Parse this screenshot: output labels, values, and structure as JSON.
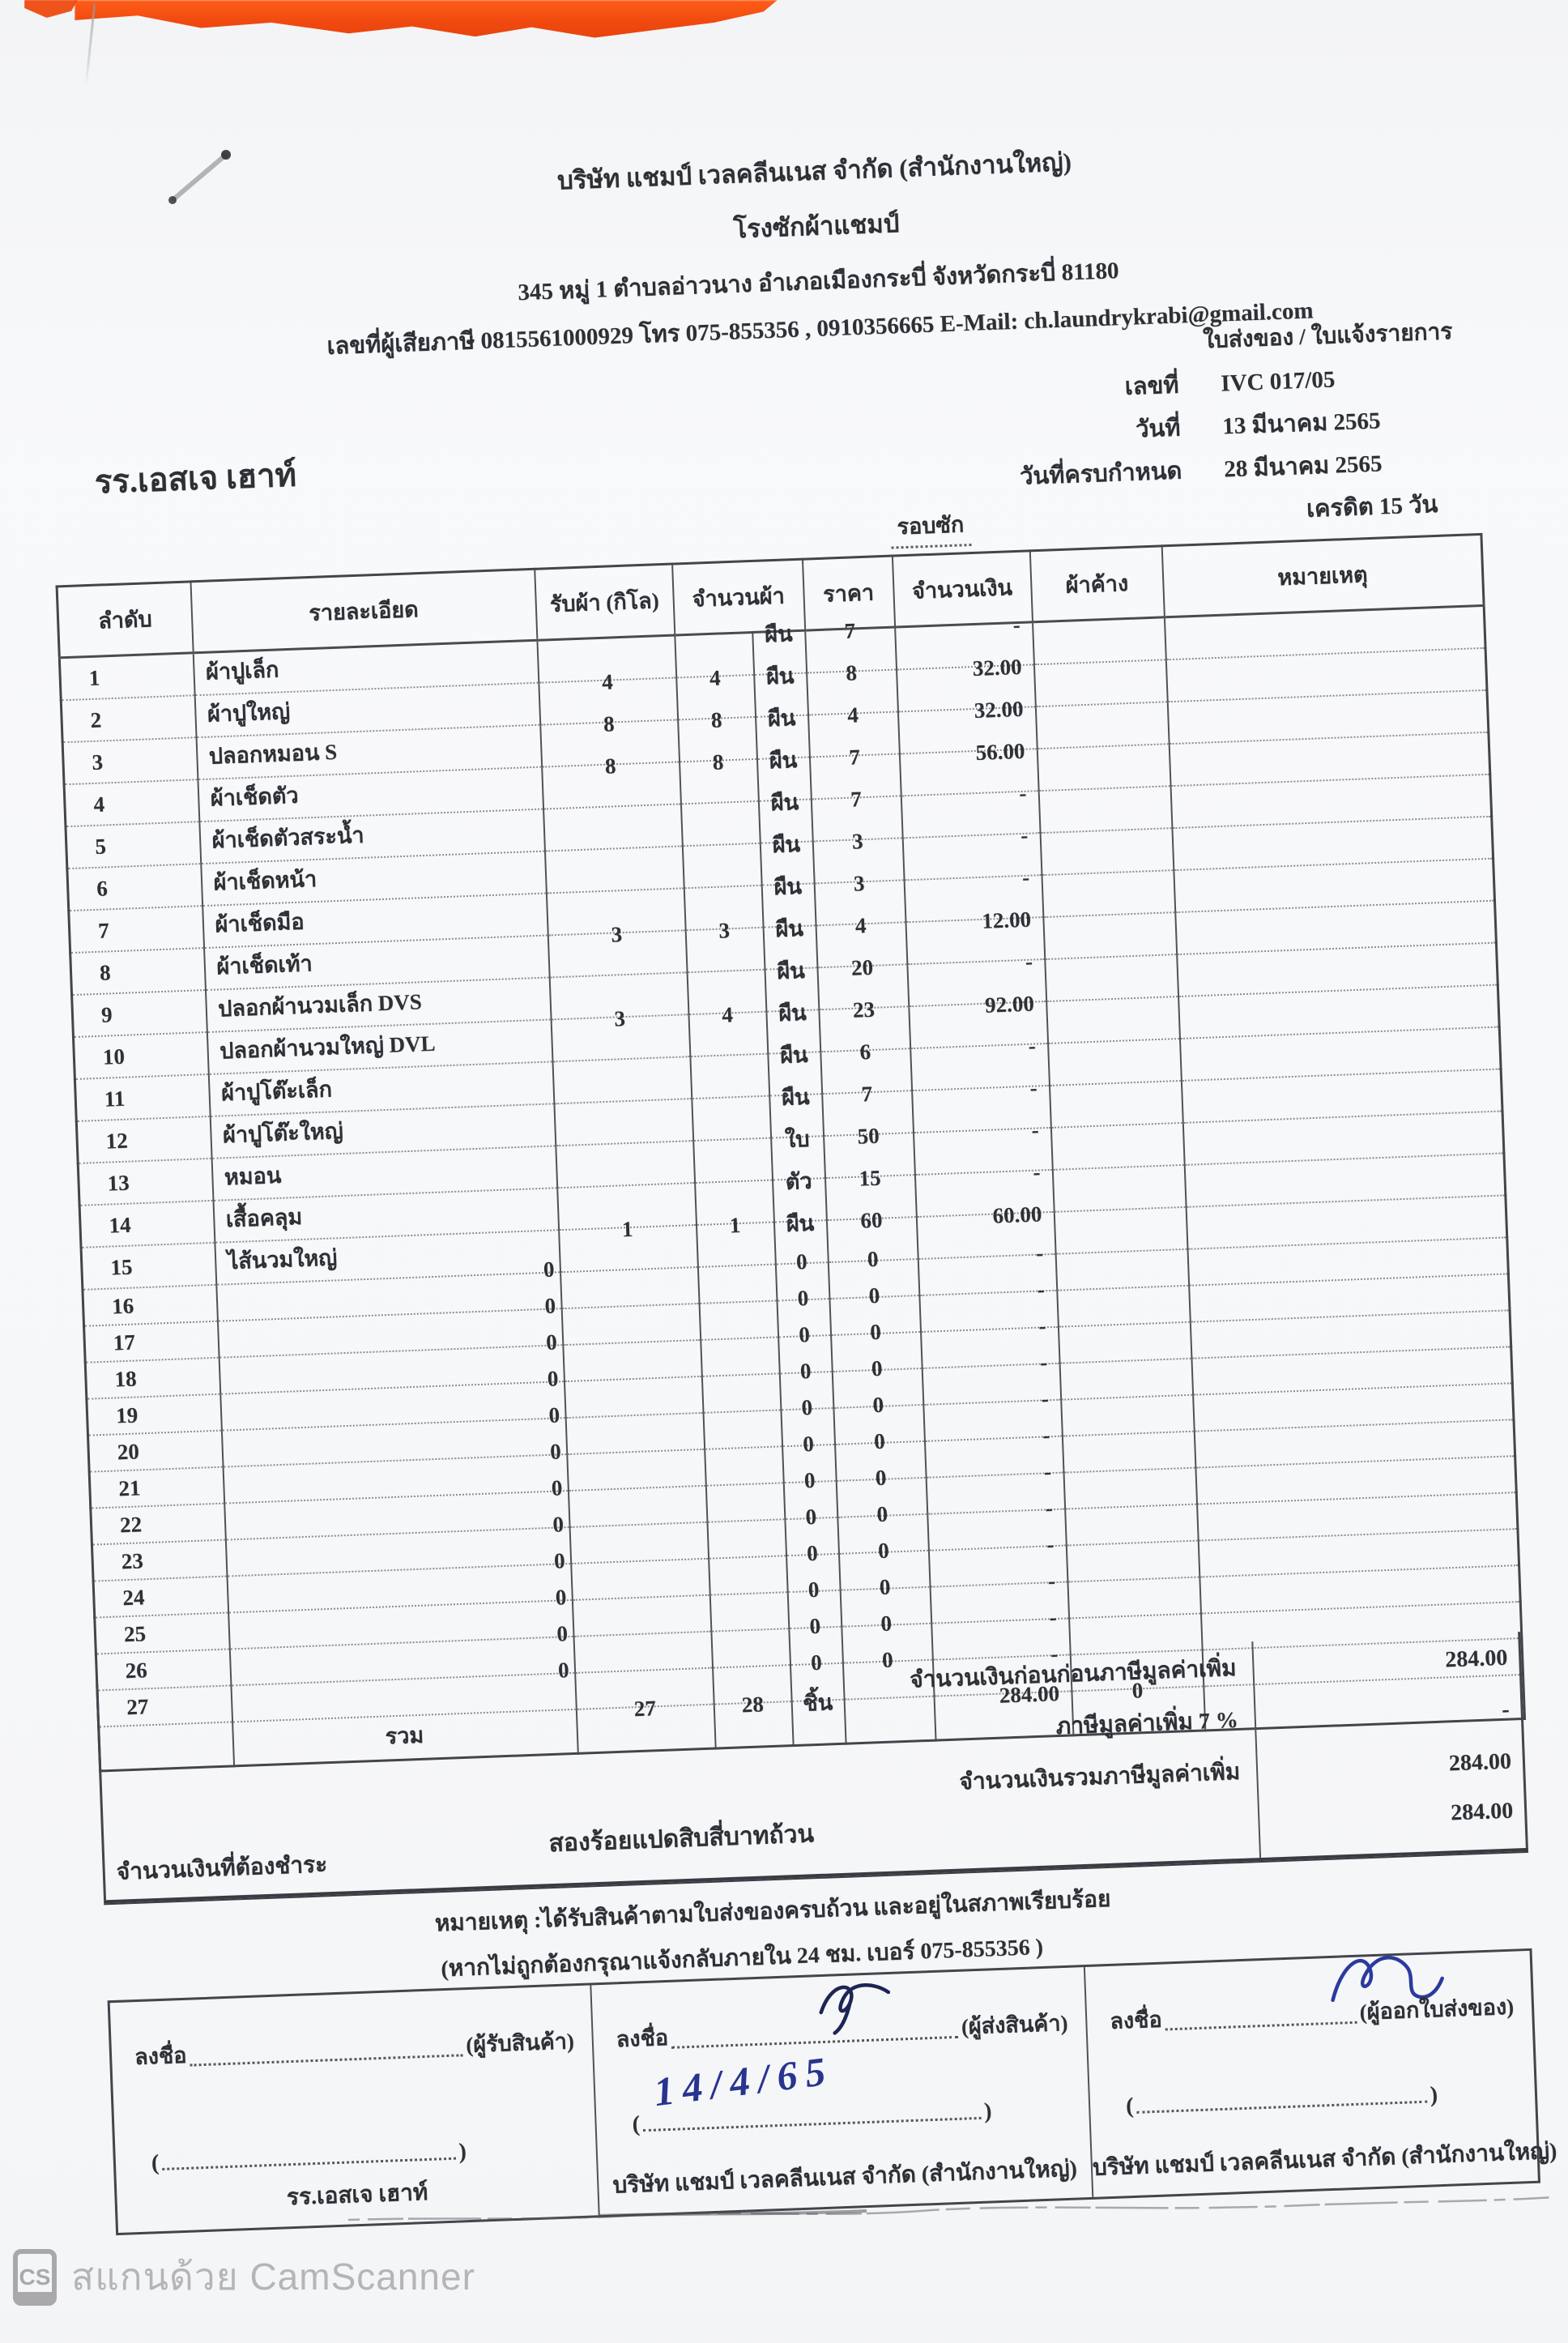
{
  "colors": {
    "ink": "#33343a",
    "accent_orange": "#ef4a10",
    "handwriting_blue": "#28348e"
  },
  "header": {
    "company_line1": "บริษัท แชมป์ เวลคลีนเนส จำกัด (สำนักงานใหญ่)",
    "company_line2": "โรงซักผ้าแชมป์",
    "address": "345 หมู่ 1 ตำบลอ่าวนาง อำเภอเมืองกระบี่ จังหวัดกระบี่ 81180",
    "contact": "เลขที่ผู้เสียภาษี 0815561000929 โทร 075-855356 , 0910356665 E-Mail: ch.laundrykrabi@gmail.com",
    "doc_type": "ใบส่งของ / ใบแจ้งรายการ",
    "customer": "รร.เอสเจ เฮาท์",
    "cycle_label": "รอบซัก",
    "meta": [
      {
        "label": "เลขที่",
        "value": "IVC 017/05"
      },
      {
        "label": "วันที่",
        "value": "13 มีนาคม 2565"
      },
      {
        "label": "วันที่ครบกำหนด",
        "value": "28 มีนาคม 2565"
      },
      {
        "label": "",
        "value": "เครดิต 15 วัน"
      }
    ]
  },
  "table": {
    "headers": {
      "seq": "ลำดับ",
      "desc": "รายละเอียด",
      "kilo": "รับผ้า (กิโล)",
      "qty": "จำนวนผ้า",
      "price": "ราคา",
      "amount": "จำนวนเงิน",
      "pending": "ผ้าค้าง",
      "note": "หมายเหตุ"
    },
    "rows": [
      {
        "no": "1",
        "desc": "ผ้าปูเล็ก",
        "kilo": "",
        "qty": "",
        "unit": "ผืน",
        "price": "7",
        "amount": "-",
        "pending": "",
        "note": ""
      },
      {
        "no": "2",
        "desc": "ผ้าปูใหญ่",
        "kilo": "4",
        "qty": "4",
        "unit": "ผืน",
        "price": "8",
        "amount": "32.00",
        "pending": "",
        "note": ""
      },
      {
        "no": "3",
        "desc": "ปลอกหมอน S",
        "kilo": "8",
        "qty": "8",
        "unit": "ผืน",
        "price": "4",
        "amount": "32.00",
        "pending": "",
        "note": ""
      },
      {
        "no": "4",
        "desc": "ผ้าเช็ดตัว",
        "kilo": "8",
        "qty": "8",
        "unit": "ผืน",
        "price": "7",
        "amount": "56.00",
        "pending": "",
        "note": ""
      },
      {
        "no": "5",
        "desc": "ผ้าเช็ดตัวสระน้ำ",
        "kilo": "",
        "qty": "",
        "unit": "ผืน",
        "price": "7",
        "amount": "-",
        "pending": "",
        "note": ""
      },
      {
        "no": "6",
        "desc": "ผ้าเช็ดหน้า",
        "kilo": "",
        "qty": "",
        "unit": "ผืน",
        "price": "3",
        "amount": "-",
        "pending": "",
        "note": ""
      },
      {
        "no": "7",
        "desc": "ผ้าเช็ดมือ",
        "kilo": "",
        "qty": "",
        "unit": "ผืน",
        "price": "3",
        "amount": "-",
        "pending": "",
        "note": ""
      },
      {
        "no": "8",
        "desc": "ผ้าเช็ดเท้า",
        "kilo": "3",
        "qty": "3",
        "unit": "ผืน",
        "price": "4",
        "amount": "12.00",
        "pending": "",
        "note": ""
      },
      {
        "no": "9",
        "desc": "ปลอกผ้านวมเล็ก DVS",
        "kilo": "",
        "qty": "",
        "unit": "ผืน",
        "price": "20",
        "amount": "-",
        "pending": "",
        "note": ""
      },
      {
        "no": "10",
        "desc": "ปลอกผ้านวมใหญ่ DVL",
        "kilo": "3",
        "qty": "4",
        "unit": "ผืน",
        "price": "23",
        "amount": "92.00",
        "pending": "",
        "note": ""
      },
      {
        "no": "11",
        "desc": "ผ้าปูโต๊ะเล็ก",
        "kilo": "",
        "qty": "",
        "unit": "ผืน",
        "price": "6",
        "amount": "-",
        "pending": "",
        "note": ""
      },
      {
        "no": "12",
        "desc": "ผ้าปูโต๊ะใหญ่",
        "kilo": "",
        "qty": "",
        "unit": "ผืน",
        "price": "7",
        "amount": "-",
        "pending": "",
        "note": ""
      },
      {
        "no": "13",
        "desc": "หมอน",
        "kilo": "",
        "qty": "",
        "unit": "ใบ",
        "price": "50",
        "amount": "-",
        "pending": "",
        "note": ""
      },
      {
        "no": "14",
        "desc": "เสื้อคลุม",
        "kilo": "",
        "qty": "",
        "unit": "ตัว",
        "price": "15",
        "amount": "-",
        "pending": "",
        "note": ""
      },
      {
        "no": "15",
        "desc": "ไส้นวมใหญ่",
        "kilo": "1",
        "qty": "1",
        "unit": "ผืน",
        "price": "60",
        "amount": "60.00",
        "pending": "",
        "note": ""
      },
      {
        "no": "16",
        "desc": "0",
        "zero": true,
        "kilo": "",
        "qty": "",
        "unit": "0",
        "price": "0",
        "amount": "-",
        "pending": "",
        "note": ""
      },
      {
        "no": "17",
        "desc": "0",
        "zero": true,
        "kilo": "",
        "qty": "",
        "unit": "0",
        "price": "0",
        "amount": "-",
        "pending": "",
        "note": ""
      },
      {
        "no": "18",
        "desc": "0",
        "zero": true,
        "kilo": "",
        "qty": "",
        "unit": "0",
        "price": "0",
        "amount": "-",
        "pending": "",
        "note": ""
      },
      {
        "no": "19",
        "desc": "0",
        "zero": true,
        "kilo": "",
        "qty": "",
        "unit": "0",
        "price": "0",
        "amount": "-",
        "pending": "",
        "note": ""
      },
      {
        "no": "20",
        "desc": "0",
        "zero": true,
        "kilo": "",
        "qty": "",
        "unit": "0",
        "price": "0",
        "amount": "-",
        "pending": "",
        "note": ""
      },
      {
        "no": "21",
        "desc": "0",
        "zero": true,
        "kilo": "",
        "qty": "",
        "unit": "0",
        "price": "0",
        "amount": "-",
        "pending": "",
        "note": ""
      },
      {
        "no": "22",
        "desc": "0",
        "zero": true,
        "kilo": "",
        "qty": "",
        "unit": "0",
        "price": "0",
        "amount": "-",
        "pending": "",
        "note": ""
      },
      {
        "no": "23",
        "desc": "0",
        "zero": true,
        "kilo": "",
        "qty": "",
        "unit": "0",
        "price": "0",
        "amount": "-",
        "pending": "",
        "note": ""
      },
      {
        "no": "24",
        "desc": "0",
        "zero": true,
        "kilo": "",
        "qty": "",
        "unit": "0",
        "price": "0",
        "amount": "-",
        "pending": "",
        "note": ""
      },
      {
        "no": "25",
        "desc": "0",
        "zero": true,
        "kilo": "",
        "qty": "",
        "unit": "0",
        "price": "0",
        "amount": "-",
        "pending": "",
        "note": ""
      },
      {
        "no": "26",
        "desc": "0",
        "zero": true,
        "kilo": "",
        "qty": "",
        "unit": "0",
        "price": "0",
        "amount": "-",
        "pending": "",
        "note": ""
      },
      {
        "no": "27",
        "desc": "0",
        "zero": true,
        "kilo": "",
        "qty": "",
        "unit": "0",
        "price": "0",
        "amount": "-",
        "pending": "",
        "note": ""
      }
    ],
    "total": {
      "label": "รวม",
      "kilo": "27",
      "qty": "28",
      "unit": "ชิ้น",
      "amount": "284.00",
      "pending": "0"
    }
  },
  "summary": {
    "rows": [
      {
        "label": "จำนวนเงินก่อนก่อนภาษีมูลค่าเพิ่ม",
        "value": "284.00"
      },
      {
        "label": "ภาษีมูลค่าเพิ่ม 7 %",
        "value": "-"
      },
      {
        "label": "จำนวนเงินรวมภาษีมูลค่าเพิ่ม",
        "value": "284.00"
      }
    ],
    "payable_label": "จำนวนเงินที่ต้องชำระ",
    "amount_in_words": "สองร้อยแปดสิบสี่บาทถ้วน",
    "payable_amount": "284.00"
  },
  "notes": {
    "line1": "หมายเหตุ :ได้รับสินค้าตามใบส่งของครบถ้วน และอยู่ในสภาพเรียบร้อย",
    "line2": "(หากไม่ถูกต้องกรุณาแจ้งกลับภายใน 24 ชม. เบอร์ 075-855356 )"
  },
  "signatures": {
    "sign_label": "ลงชื่อ",
    "paren_open": "(",
    "paren_close": ")",
    "boxes": [
      {
        "role": "(ผู้รับสินค้า)",
        "footer": "รร.เอสเจ เฮาท์"
      },
      {
        "role": "(ผู้ส่งสินค้า)",
        "footer": "บริษัท แชมป์ เวลคลีนเนส จำกัด (สำนักงานใหญ่)",
        "handwritten_date": "14/4/65"
      },
      {
        "role": "(ผู้ออกใบส่งของ)",
        "footer": "บริษัท แชมป์ เวลคลีนเนส จำกัด (สำนักงานใหญ่)"
      }
    ]
  },
  "watermark": {
    "logo": "CS",
    "text": "สแกนด้วย CamScanner"
  }
}
